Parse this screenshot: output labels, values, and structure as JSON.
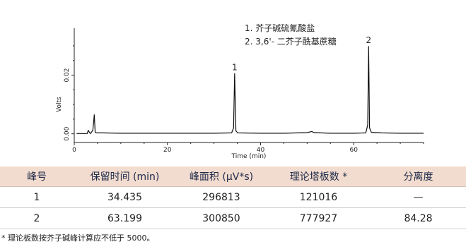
{
  "chart_data": {
    "type": "line",
    "xlabel": "Time (min)",
    "ylabel": "Volts",
    "xlim": [
      0,
      75
    ],
    "ylim": [
      -0.002,
      0.036
    ],
    "x_ticks": [
      0,
      20,
      40,
      60
    ],
    "y_ticks": [
      0.0,
      0.02
    ],
    "y_tick_labels": [
      "0.00",
      "0.02"
    ],
    "legend": [
      "1. 芥子碱硫氰酸盐",
      "2. 3,6'- 二芥子酰基蔗糖"
    ],
    "peak_labels": [
      {
        "label": "1",
        "x": 34.435,
        "y": 0.0205
      },
      {
        "label": "2",
        "x": 63.199,
        "y": 0.0298
      }
    ],
    "series": [
      {
        "color": "#111111",
        "x": [
          0.5,
          2.8,
          3.0,
          3.3,
          3.5,
          3.8,
          4.0,
          4.3,
          4.5,
          4.8,
          6,
          10,
          15,
          20,
          25,
          30,
          33.8,
          34.2,
          34.435,
          34.7,
          35.1,
          40,
          45,
          50,
          51.0,
          51.5,
          55,
          60,
          62.6,
          63.0,
          63.199,
          63.4,
          63.8,
          66,
          70,
          75
        ],
        "y": [
          0.0001,
          0.0001,
          0.0012,
          0.0004,
          0.0001,
          0.0008,
          0.0012,
          0.0065,
          0.0005,
          0.0003,
          0.0003,
          0.0002,
          0.0002,
          0.0002,
          0.0002,
          0.0002,
          0.0003,
          0.002,
          0.0205,
          0.001,
          0.0003,
          0.0002,
          0.0002,
          0.0004,
          0.0008,
          0.0004,
          0.0002,
          0.0002,
          0.0003,
          0.003,
          0.0298,
          0.002,
          0.0005,
          0.0003,
          0.0002,
          0.0002
        ]
      }
    ],
    "grid": false
  },
  "table": {
    "headers": [
      "峰号",
      "保留时间 (min)",
      "峰面积 (μV*s)",
      "理论塔板数 *",
      "分离度"
    ],
    "rows": [
      [
        "1",
        "34.435",
        "296813",
        "121016",
        "—"
      ],
      [
        "2",
        "63.199",
        "300850",
        "777927",
        "84.28"
      ]
    ]
  },
  "footnote": "* 理论板数按芥子碱峰计算应不低于 5000。",
  "colors": {
    "header_bg": "#f2dccf",
    "header_text": "#1e2a4a"
  }
}
